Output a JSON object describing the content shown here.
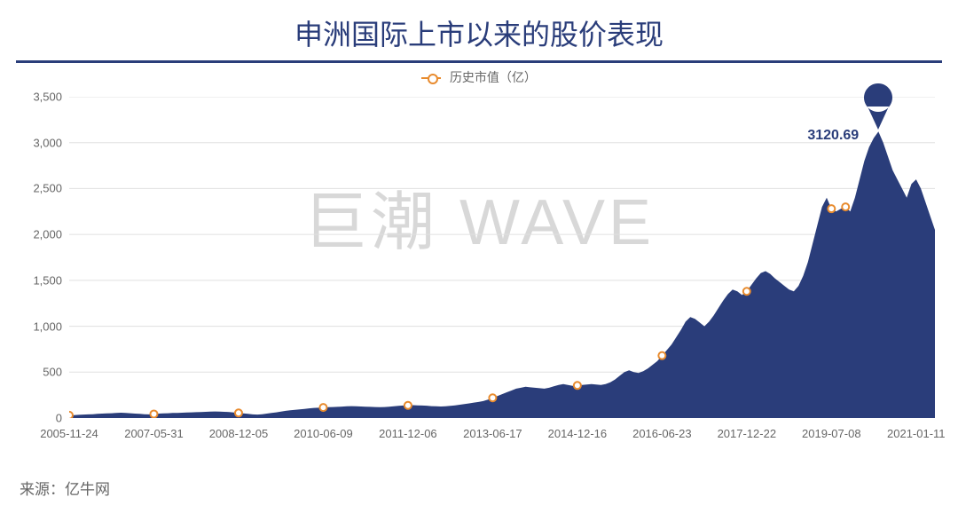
{
  "title": "申洲国际上市以来的股价表现",
  "legend_label": "历史市值（亿）",
  "watermark": "巨潮 WAVE",
  "source_label": "来源：亿牛网",
  "peak": {
    "label": "3120.69",
    "value": 3120.69,
    "x_index": 172
  },
  "chart": {
    "type": "area",
    "background_color": "#ffffff",
    "area_color": "#2a3d7a",
    "line_color": "#2a3d7a",
    "marker_stroke": "#e88b2e",
    "marker_fill": "#ffffff",
    "grid_color": "#e0e0e0",
    "axis_tick_color": "#888888",
    "title_color": "#2a3d7a",
    "rule_color": "#2a3d7a",
    "text_color": "#666666",
    "watermark_color": "#d8d8d8",
    "peak_label_color": "#2a3d7a",
    "ylim": [
      0,
      3500
    ],
    "ytick_step": 500,
    "yticks": [
      0,
      500,
      1000,
      1500,
      2000,
      2500,
      3000,
      3500
    ],
    "xtick_labels": [
      "2005-11-24",
      "2007-05-31",
      "2008-12-05",
      "2010-06-09",
      "2011-12-06",
      "2013-06-17",
      "2014-12-16",
      "2016-06-23",
      "2017-12-22",
      "2019-07-08",
      "2021-01-11"
    ],
    "xtick_positions": [
      0,
      18,
      36,
      54,
      72,
      90,
      108,
      126,
      144,
      162,
      180
    ],
    "data_length": 185,
    "values": [
      30,
      32,
      35,
      38,
      40,
      42,
      45,
      48,
      50,
      52,
      55,
      58,
      55,
      52,
      48,
      45,
      42,
      40,
      44,
      48,
      50,
      52,
      55,
      56,
      58,
      60,
      62,
      64,
      66,
      68,
      70,
      72,
      70,
      68,
      65,
      60,
      55,
      50,
      45,
      40,
      38,
      42,
      48,
      55,
      62,
      70,
      78,
      85,
      90,
      95,
      100,
      105,
      110,
      112,
      115,
      118,
      120,
      122,
      125,
      128,
      130,
      128,
      126,
      124,
      122,
      120,
      118,
      120,
      124,
      128,
      132,
      136,
      138,
      140,
      138,
      136,
      134,
      130,
      128,
      126,
      128,
      132,
      138,
      145,
      152,
      160,
      168,
      175,
      185,
      200,
      220,
      240,
      260,
      280,
      300,
      320,
      330,
      340,
      335,
      330,
      325,
      320,
      330,
      345,
      360,
      370,
      360,
      350,
      355,
      360,
      365,
      370,
      365,
      360,
      370,
      390,
      420,
      460,
      500,
      520,
      500,
      490,
      510,
      540,
      580,
      620,
      680,
      740,
      800,
      880,
      960,
      1050,
      1100,
      1080,
      1040,
      1000,
      1050,
      1120,
      1200,
      1280,
      1350,
      1400,
      1380,
      1340,
      1380,
      1450,
      1520,
      1580,
      1600,
      1570,
      1520,
      1480,
      1440,
      1400,
      1380,
      1440,
      1550,
      1700,
      1900,
      2100,
      2300,
      2400,
      2280,
      2250,
      2280,
      2300,
      2250,
      2400,
      2600,
      2800,
      2950,
      3050,
      3120,
      3000,
      2850,
      2700,
      2600,
      2500,
      2400,
      2550,
      2600,
      2500,
      2350,
      2200,
      2050
    ],
    "marker_indices": [
      0,
      18,
      36,
      54,
      72,
      90,
      108,
      126,
      144,
      162,
      165
    ]
  }
}
